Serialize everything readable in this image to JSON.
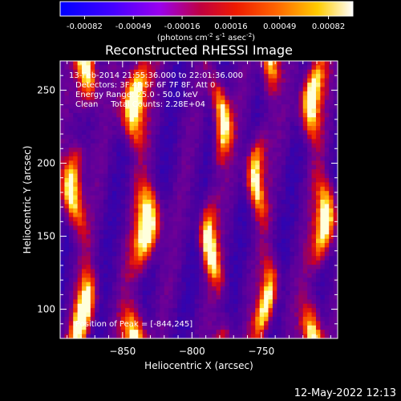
{
  "colorbar": {
    "tick_labels": [
      "-0.00082",
      "-0.00049",
      "-0.00016",
      "0.00016",
      "0.00049",
      "0.00082"
    ],
    "range": [
      -0.00082,
      0.00082
    ],
    "unit_base": "(photons cm",
    "unit_exp1": "-2",
    "unit_mid": " s",
    "unit_exp2": "-1",
    "unit_end": " asec",
    "unit_exp3": "-2",
    "unit_close": ")",
    "colors": [
      "#0000ff",
      "#7a00ff",
      "#cc0000",
      "#ff4000",
      "#ffcc00",
      "#ffffff"
    ]
  },
  "chart_data": {
    "type": "heatmap",
    "title": "Reconstructed RHESSI Image",
    "xlabel": "Heliocentric X (arcsec)",
    "ylabel": "Heliocentric Y (arcsec)",
    "xlim": [
      -895,
      -695
    ],
    "ylim": [
      80,
      270
    ],
    "xticks": [
      -850,
      -800,
      -750
    ],
    "xtick_labels": [
      "−850",
      "−800",
      "−750"
    ],
    "yticks": [
      100,
      150,
      200,
      250
    ],
    "ytick_labels": [
      "100",
      "150",
      "200",
      "250"
    ],
    "grid": false,
    "colormap": "rhessi-bluered",
    "peak": [
      -844,
      245
    ],
    "annotations": [
      "13-Feb-2014 21:55:36.000 to 22:01:36.000",
      "Detectors: 3F 4F 5F 6F 7F 8F, Att 0",
      "Energy Range: 25.0 - 50.0 keV",
      "Clean     Total Counts: 2.28E+04"
    ],
    "peak_label": "Position of Peak = [-844,245]"
  },
  "footer": {
    "timestamp": "12-May-2022 12:13"
  }
}
